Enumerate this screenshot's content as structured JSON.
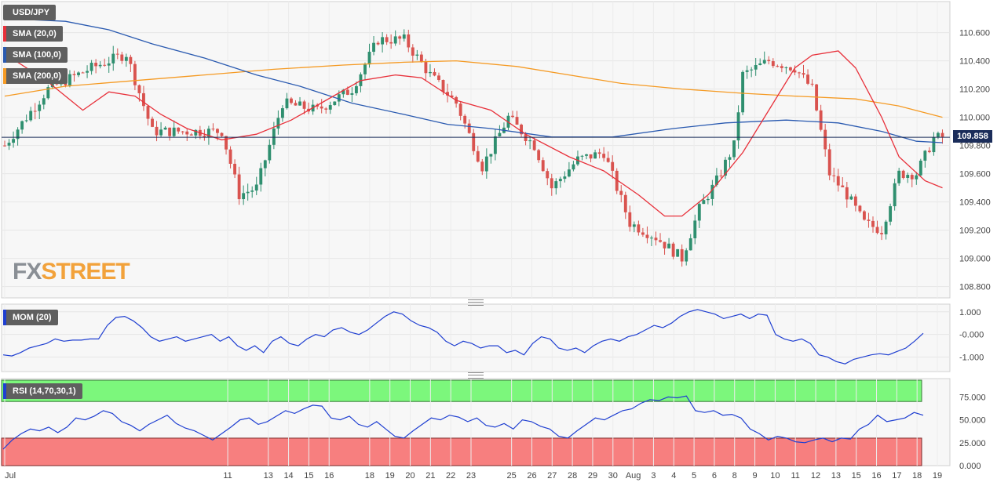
{
  "symbol": "USD/JPY",
  "indicators": {
    "sma20": "SMA (20,0)",
    "sma100": "SMA (100,0)",
    "sma200": "SMA (200,0)",
    "mom": "MOM (20)",
    "rsi": "RSI (14,70,30,1)"
  },
  "last_price": "109.858",
  "logo": {
    "part1": "FX",
    "part2": "STREET"
  },
  "colors": {
    "up": "#2f8f6f",
    "down": "#d9534f",
    "sma20": "#e8303a",
    "sma100": "#2a5ab0",
    "sma200": "#f59a23",
    "mom": "#1f3fd1",
    "rsi": "#1f3fd1",
    "rsi_overbought": "#7cf77c",
    "rsi_oversold": "#f77f7f",
    "price_line": "#1b2d5a"
  },
  "chart_data": {
    "type": "candlestick",
    "price_axis": {
      "ticks": [
        "110.600",
        "110.400",
        "110.200",
        "110.000",
        "109.800",
        "109.600",
        "109.400",
        "109.200",
        "109.000",
        "108.800"
      ],
      "range": [
        108.72,
        110.82
      ]
    },
    "mom_axis": {
      "ticks": [
        "1.000",
        "-0.000",
        "-1.000"
      ],
      "range": [
        -1.5,
        1.2
      ]
    },
    "rsi_axis": {
      "ticks": [
        "75.000",
        "50.000",
        "25.000",
        "0.000"
      ],
      "range": [
        0,
        95
      ],
      "overbought": 70,
      "oversold": 30
    },
    "x_labels": [
      "Jul",
      "11",
      "13",
      "14",
      "15",
      "16",
      "18",
      "19",
      "20",
      "21",
      "22",
      "23",
      "25",
      "26",
      "27",
      "28",
      "29",
      "30",
      "Aug",
      "3",
      "4",
      "5",
      "6",
      "8",
      "9",
      "10",
      "11",
      "12",
      "13",
      "15",
      "16",
      "17",
      "18",
      "19"
    ],
    "current_price": 109.858,
    "candles": [],
    "sma20": [
      [
        0,
        110.45
      ],
      [
        10,
        110.25
      ],
      [
        18,
        110.05
      ],
      [
        24,
        110.18
      ],
      [
        30,
        110.15
      ],
      [
        36,
        110.02
      ],
      [
        42,
        109.92
      ],
      [
        50,
        109.84
      ],
      [
        58,
        109.88
      ],
      [
        66,
        109.98
      ],
      [
        74,
        110.12
      ],
      [
        82,
        110.26
      ],
      [
        90,
        110.3
      ],
      [
        96,
        110.28
      ],
      [
        104,
        110.12
      ],
      [
        112,
        110.05
      ],
      [
        120,
        109.88
      ],
      [
        130,
        109.72
      ],
      [
        138,
        109.62
      ],
      [
        146,
        109.45
      ],
      [
        152,
        109.3
      ],
      [
        156,
        109.3
      ],
      [
        162,
        109.45
      ],
      [
        170,
        109.75
      ],
      [
        176,
        110.05
      ],
      [
        182,
        110.35
      ],
      [
        186,
        110.44
      ],
      [
        192,
        110.47
      ],
      [
        196,
        110.35
      ],
      [
        202,
        110.0
      ],
      [
        206,
        109.72
      ],
      [
        212,
        109.55
      ],
      [
        216,
        109.5
      ]
    ],
    "sma100": [
      [
        0,
        110.7
      ],
      [
        14,
        110.68
      ],
      [
        24,
        110.62
      ],
      [
        34,
        110.52
      ],
      [
        46,
        110.42
      ],
      [
        58,
        110.3
      ],
      [
        68,
        110.22
      ],
      [
        80,
        110.1
      ],
      [
        92,
        110.02
      ],
      [
        102,
        109.95
      ],
      [
        112,
        109.92
      ],
      [
        126,
        109.86
      ],
      [
        140,
        109.86
      ],
      [
        154,
        109.92
      ],
      [
        166,
        109.96
      ],
      [
        180,
        109.98
      ],
      [
        192,
        109.96
      ],
      [
        202,
        109.9
      ],
      [
        210,
        109.83
      ],
      [
        216,
        109.82
      ]
    ],
    "sma200": [
      [
        0,
        110.15
      ],
      [
        14,
        110.22
      ],
      [
        30,
        110.26
      ],
      [
        46,
        110.3
      ],
      [
        62,
        110.34
      ],
      [
        78,
        110.37
      ],
      [
        92,
        110.39
      ],
      [
        104,
        110.4
      ],
      [
        118,
        110.36
      ],
      [
        130,
        110.3
      ],
      [
        142,
        110.24
      ],
      [
        156,
        110.2
      ],
      [
        170,
        110.17
      ],
      [
        182,
        110.15
      ],
      [
        196,
        110.13
      ],
      [
        206,
        110.08
      ],
      [
        216,
        110.0
      ]
    ],
    "mom": [
      -0.9,
      -0.95,
      -0.8,
      -0.6,
      -0.5,
      -0.4,
      -0.2,
      -0.3,
      -0.25,
      -0.25,
      -0.2,
      -0.2,
      0.4,
      0.75,
      0.8,
      0.6,
      0.3,
      -0.1,
      -0.3,
      -0.2,
      -0.1,
      -0.3,
      -0.2,
      -0.1,
      0.0,
      -0.3,
      -0.1,
      -0.5,
      -0.7,
      -0.5,
      -0.8,
      -0.3,
      -0.1,
      -0.4,
      -0.5,
      -0.2,
      0.0,
      -0.1,
      0.2,
      0.3,
      0.1,
      0.0,
      0.2,
      0.5,
      0.8,
      1.0,
      0.9,
      0.6,
      0.4,
      0.3,
      0.1,
      -0.3,
      -0.5,
      -0.3,
      -0.4,
      -0.6,
      -0.5,
      -0.5,
      -0.8,
      -0.7,
      -0.9,
      -0.4,
      -0.1,
      -0.2,
      -0.6,
      -0.7,
      -0.6,
      -0.8,
      -0.5,
      -0.3,
      -0.2,
      -0.3,
      -0.1,
      0.0,
      0.2,
      0.4,
      0.3,
      0.5,
      0.8,
      1.0,
      1.1,
      1.0,
      0.9,
      0.7,
      0.8,
      0.9,
      0.7,
      0.9,
      0.85,
      0.0,
      -0.2,
      -0.3,
      -0.2,
      -0.4,
      -0.9,
      -1.0,
      -1.2,
      -1.3,
      -1.1,
      -1.0,
      -0.9,
      -0.85,
      -0.9,
      -0.75,
      -0.6,
      -0.3,
      0.05
    ],
    "rsi": [
      18,
      28,
      35,
      40,
      38,
      42,
      36,
      42,
      52,
      50,
      54,
      60,
      57,
      48,
      44,
      38,
      45,
      50,
      55,
      46,
      41,
      38,
      33,
      28,
      35,
      42,
      50,
      52,
      45,
      48,
      54,
      60,
      57,
      62,
      66,
      65,
      52,
      50,
      54,
      45,
      42,
      48,
      40,
      32,
      30,
      38,
      45,
      52,
      50,
      55,
      53,
      48,
      52,
      44,
      42,
      46,
      40,
      50,
      48,
      43,
      40,
      32,
      30,
      38,
      45,
      52,
      50,
      55,
      60,
      62,
      68,
      72,
      71,
      75,
      74,
      76,
      60,
      58,
      60,
      55,
      56,
      52,
      40,
      35,
      28,
      32,
      30,
      26,
      25,
      28,
      30,
      26,
      30,
      29,
      40,
      45,
      55,
      48,
      50,
      52,
      58,
      55
    ],
    "x_label_positions": [
      0,
      11,
      13,
      14,
      15,
      16,
      18,
      19,
      20,
      21,
      22,
      23,
      25,
      26,
      27,
      28,
      29,
      30,
      31,
      32,
      33,
      34,
      35,
      36,
      37,
      38,
      39,
      40,
      41,
      42,
      43,
      44,
      45,
      46
    ]
  }
}
